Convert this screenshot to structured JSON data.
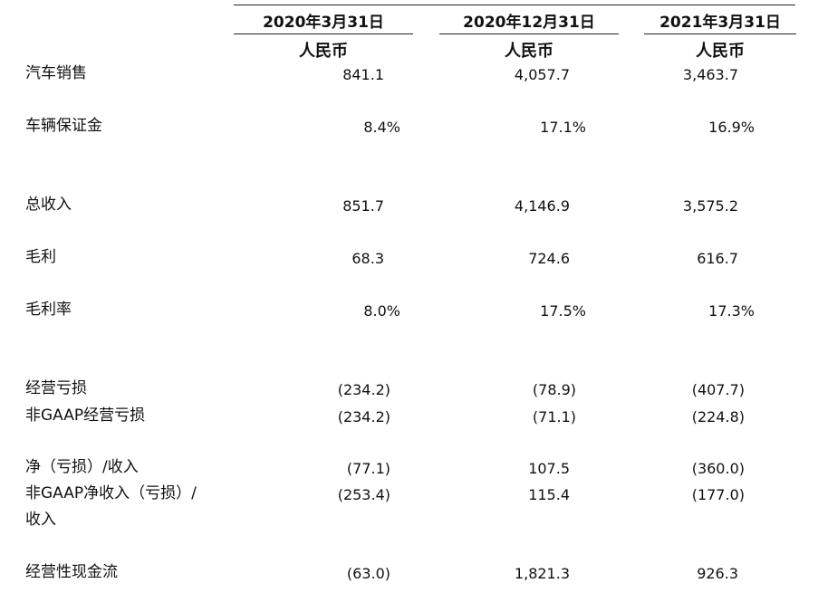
{
  "columns": [
    {
      "date": "2020年3月31日",
      "currency": "人民币"
    },
    {
      "date": "2020年12月31日",
      "currency": "人民币"
    },
    {
      "date": "2021年3月31日",
      "currency": "人民币"
    }
  ],
  "rows": [
    {
      "label": "汽车销售",
      "values": [
        "841.1",
        "4,057.7",
        "3,463.7"
      ]
    },
    {
      "label": "车辆保证金",
      "values": [
        "8.4%",
        "17.1%",
        "16.9%"
      ]
    },
    {
      "label": "总收入",
      "values": [
        "851.7",
        "4,146.9",
        "3,575.2"
      ]
    },
    {
      "label": "毛利",
      "values": [
        "68.3",
        "724.6",
        "616.7"
      ]
    },
    {
      "label": "毛利率",
      "values": [
        "8.0%",
        "17.5%",
        "17.3%"
      ]
    },
    {
      "label": "经营亏损",
      "values": [
        "(234.2)",
        "(78.9)",
        "(407.7)"
      ]
    },
    {
      "label": "非GAAP经营亏损",
      "values": [
        "(234.2)",
        "(71.1)",
        "(224.8)"
      ]
    },
    {
      "label": "净（亏损）/收入",
      "values": [
        "(77.1)",
        "107.5",
        "(360.0)"
      ]
    },
    {
      "label": "非GAAP净收入（亏损）/",
      "label2": "收入",
      "values": [
        "(253.4)",
        "115.4",
        "(177.0)"
      ]
    },
    {
      "label": "经营性现金流",
      "values": [
        "(63.0)",
        "1,821.3",
        "926.3"
      ]
    }
  ]
}
